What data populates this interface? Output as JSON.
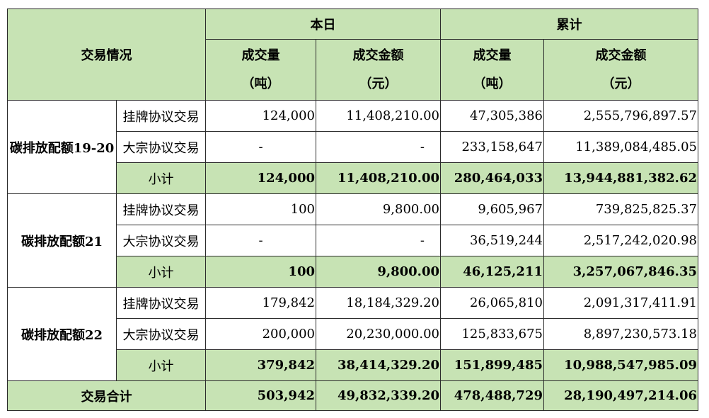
{
  "header": {
    "section_label": "交易情况",
    "group_today": "本日",
    "group_cumulative": "累计",
    "volume_label": "成交量",
    "volume_unit": "（吨）",
    "amount_label": "成交金额",
    "amount_unit": "（元）"
  },
  "groups": [
    {
      "name": "碳排放配额19-20",
      "rows": [
        {
          "type": "挂牌协议交易",
          "today_volume": "124,000",
          "today_amount": "11,408,210.00",
          "cum_volume": "47,305,386",
          "cum_amount": "2,555,796,897.57"
        },
        {
          "type": "大宗协议交易",
          "today_volume": "-",
          "today_amount": "-",
          "cum_volume": "233,158,647",
          "cum_amount": "11,389,084,485.05"
        },
        {
          "type": "小计",
          "today_volume": "124,000",
          "today_amount": "11,408,210.00",
          "cum_volume": "280,464,033",
          "cum_amount": "13,944,881,382.62"
        }
      ]
    },
    {
      "name": "碳排放配额21",
      "rows": [
        {
          "type": "挂牌协议交易",
          "today_volume": "100",
          "today_amount": "9,800.00",
          "cum_volume": "9,605,967",
          "cum_amount": "739,825,825.37"
        },
        {
          "type": "大宗协议交易",
          "today_volume": "-",
          "today_amount": "-",
          "cum_volume": "36,519,244",
          "cum_amount": "2,517,242,020.98"
        },
        {
          "type": "小计",
          "today_volume": "100",
          "today_amount": "9,800.00",
          "cum_volume": "46,125,211",
          "cum_amount": "3,257,067,846.35"
        }
      ]
    },
    {
      "name": "碳排放配额22",
      "rows": [
        {
          "type": "挂牌协议交易",
          "today_volume": "179,842",
          "today_amount": "18,184,329.20",
          "cum_volume": "26,065,810",
          "cum_amount": "2,091,317,411.91"
        },
        {
          "type": "大宗协议交易",
          "today_volume": "200,000",
          "today_amount": "20,230,000.00",
          "cum_volume": "125,833,675",
          "cum_amount": "8,897,230,573.18"
        },
        {
          "type": "小计",
          "today_volume": "379,842",
          "today_amount": "38,414,329.20",
          "cum_volume": "151,899,485",
          "cum_amount": "10,988,547,985.09"
        }
      ]
    }
  ],
  "total": {
    "label": "交易合计",
    "today_volume": "503,942",
    "today_amount": "49,832,339.20",
    "cum_volume": "478,488,729",
    "cum_amount": "28,190,497,214.06"
  },
  "colors": {
    "header_fill": "#c7e3b4",
    "border": "#2b2b2b"
  }
}
